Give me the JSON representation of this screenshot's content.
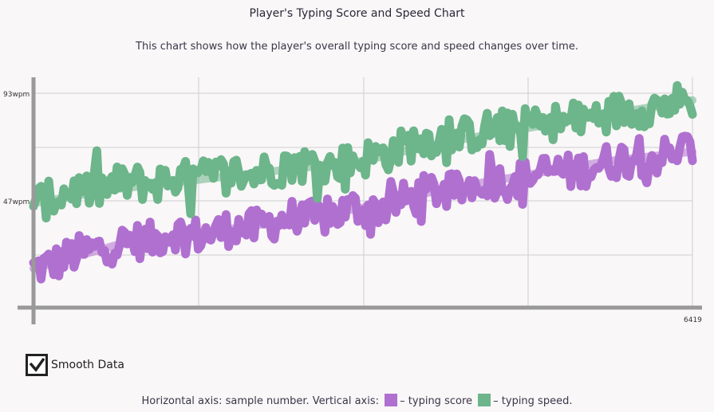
{
  "header": {
    "title": "Player's Typing Score and Speed Chart",
    "subtitle": "This chart shows how the player's overall typing score and speed changes over time."
  },
  "controls": {
    "smooth_label": "Smooth Data",
    "smooth_checked": true
  },
  "legend": {
    "prefix": "Horizontal axis: sample number. Vertical axis:",
    "score_label": "– typing score",
    "speed_label": "– typing speed.",
    "score_color": "#b070d0",
    "speed_color": "#6db58a"
  },
  "chart_data": {
    "type": "line",
    "x_tick_labels": {
      "end": "6419"
    },
    "y_tick_labels": [
      "93wpm",
      "47wpm"
    ],
    "y_ticks": [
      93,
      47
    ],
    "xlim": [
      0,
      6419
    ],
    "ylim": [
      0,
      140
    ],
    "grid": true,
    "series": [
      {
        "key": "score",
        "color": "#b070d0",
        "trend": [
          [
            0,
            18
          ],
          [
            800,
            28
          ],
          [
            1600,
            33
          ],
          [
            2400,
            38
          ],
          [
            3200,
            44
          ],
          [
            4000,
            52
          ],
          [
            4800,
            58
          ],
          [
            5600,
            64
          ],
          [
            6419,
            68
          ]
        ],
        "values": [
          18,
          20,
          24,
          26,
          28,
          30,
          30,
          34,
          32,
          33,
          36,
          35,
          38,
          40,
          39,
          41,
          44,
          43,
          46,
          48,
          52,
          50,
          54,
          56,
          55,
          58,
          60,
          59,
          62,
          64,
          66,
          65,
          68,
          70
        ]
      },
      {
        "key": "speed",
        "color": "#6db58a",
        "trend": [
          [
            0,
            46
          ],
          [
            800,
            52
          ],
          [
            1600,
            56
          ],
          [
            2400,
            60
          ],
          [
            3200,
            64
          ],
          [
            4000,
            72
          ],
          [
            4800,
            78
          ],
          [
            5600,
            84
          ],
          [
            6419,
            90
          ]
        ],
        "values": [
          46,
          48,
          52,
          51,
          54,
          55,
          54,
          57,
          56,
          58,
          59,
          58,
          61,
          62,
          63,
          62,
          64,
          66,
          68,
          72,
          74,
          73,
          76,
          78,
          77,
          80,
          81,
          80,
          83,
          85,
          86,
          87,
          89,
          90
        ]
      }
    ]
  }
}
